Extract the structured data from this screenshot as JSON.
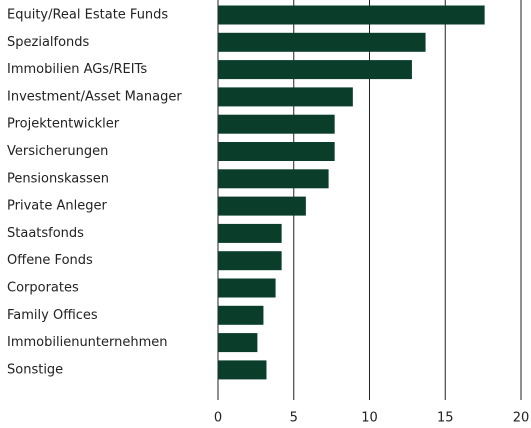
{
  "chart_data": {
    "type": "barh",
    "categories": [
      "Equity/Real Estate Funds",
      "Spezialfonds",
      "Immobilien AGs/REITs",
      "Investment/Asset Manager",
      "Projektentwickler",
      "Versicherungen",
      "Pensionskassen",
      "Private Anleger",
      "Staatsfonds",
      "Offene Fonds",
      "Corporates",
      "Family Offices",
      "Immobilienunternehmen",
      "Sonstige"
    ],
    "values": [
      17.6,
      13.7,
      12.8,
      8.9,
      7.7,
      7.7,
      7.3,
      5.8,
      4.2,
      4.2,
      3.8,
      3.0,
      2.6,
      3.2
    ],
    "color": "#0a3e2b",
    "xlim": [
      0,
      20
    ],
    "xticks": [
      0,
      5,
      10,
      15,
      20
    ],
    "grid": true
  }
}
